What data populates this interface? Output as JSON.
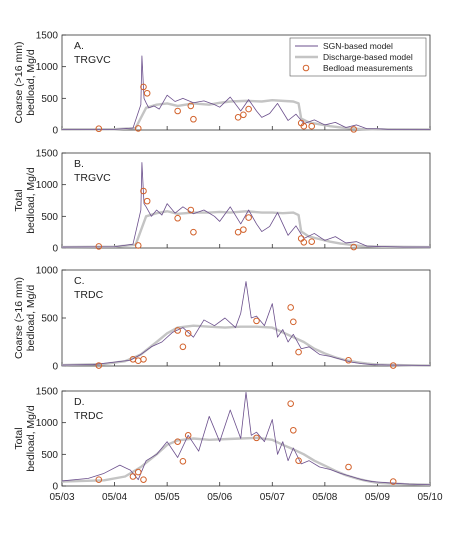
{
  "colors": {
    "sgn": "#6b4f8c",
    "discharge": "#c4c4c4",
    "measurement": "#d2622c",
    "axis": "#333333"
  },
  "chart_data": [
    {
      "type": "line",
      "panel_label": "A.",
      "station": "TRGVC",
      "ylabel": [
        "Coarse (>16 mm)",
        "bedload, Mg/d"
      ],
      "ylim": [
        0,
        1500
      ],
      "yticks": [
        0,
        500,
        1000,
        1500
      ],
      "xlim": [
        0,
        7
      ],
      "legend": {
        "placement": "top-right",
        "entries": [
          "SGN-based model",
          "Discharge-based model",
          "Bedload measurements"
        ]
      },
      "series": [
        {
          "name": "SGN-based model",
          "style": "line",
          "x": [
            0.0,
            1.0,
            1.35,
            1.5,
            1.52,
            1.56,
            1.6,
            1.65,
            1.75,
            1.85,
            2.0,
            2.15,
            2.3,
            2.5,
            2.7,
            2.9,
            3.0,
            3.2,
            3.4,
            3.55,
            3.7,
            3.8,
            3.95,
            4.1,
            4.3,
            4.45,
            4.6,
            4.8,
            5.0,
            5.2,
            5.4,
            5.6,
            5.8,
            6.0,
            6.2,
            6.5,
            6.8,
            7.0
          ],
          "y": [
            10,
            10,
            30,
            400,
            1170,
            500,
            430,
            350,
            380,
            330,
            550,
            450,
            500,
            430,
            460,
            400,
            360,
            520,
            300,
            480,
            300,
            200,
            260,
            420,
            150,
            250,
            100,
            160,
            80,
            120,
            40,
            80,
            20,
            20,
            10,
            10,
            10,
            10
          ]
        },
        {
          "name": "Discharge-based model",
          "style": "line",
          "x": [
            0.0,
            1.0,
            1.4,
            1.6,
            1.8,
            2.0,
            2.2,
            2.5,
            2.8,
            3.0,
            3.2,
            3.5,
            3.8,
            4.0,
            4.2,
            4.4,
            4.5,
            4.55,
            4.7,
            4.9,
            5.1,
            5.3,
            5.5,
            5.7,
            6.0,
            7.0
          ],
          "y": [
            10,
            12,
            30,
            350,
            400,
            420,
            380,
            420,
            400,
            430,
            450,
            460,
            450,
            470,
            460,
            450,
            420,
            180,
            120,
            90,
            60,
            40,
            25,
            15,
            10,
            8
          ]
        },
        {
          "name": "Bedload measurements",
          "style": "scatter",
          "x": [
            0.7,
            1.45,
            1.55,
            1.62,
            2.2,
            2.45,
            2.5,
            3.35,
            3.45,
            3.55,
            4.55,
            4.6,
            4.75,
            5.55
          ],
          "y": [
            20,
            25,
            680,
            580,
            300,
            380,
            170,
            200,
            240,
            330,
            110,
            60,
            60,
            10
          ]
        }
      ]
    },
    {
      "type": "line",
      "panel_label": "B.",
      "station": "TRGVC",
      "ylabel": [
        "Total",
        "bedload, Mg/d"
      ],
      "ylim": [
        0,
        1500
      ],
      "yticks": [
        0,
        500,
        1000,
        1500
      ],
      "xlim": [
        0,
        7
      ],
      "series": [
        {
          "name": "SGN-based model",
          "style": "line",
          "x": [
            0.0,
            1.0,
            1.35,
            1.5,
            1.52,
            1.56,
            1.6,
            1.7,
            1.8,
            1.9,
            2.0,
            2.15,
            2.3,
            2.5,
            2.7,
            2.9,
            3.0,
            3.2,
            3.4,
            3.55,
            3.7,
            3.8,
            3.95,
            4.1,
            4.3,
            4.45,
            4.6,
            4.8,
            5.0,
            5.2,
            5.4,
            5.6,
            5.8,
            6.0,
            6.5,
            7.0
          ],
          "y": [
            15,
            20,
            60,
            600,
            1350,
            700,
            650,
            500,
            600,
            520,
            700,
            550,
            650,
            540,
            600,
            500,
            420,
            650,
            380,
            600,
            380,
            260,
            340,
            560,
            200,
            350,
            150,
            230,
            120,
            180,
            80,
            100,
            30,
            25,
            15,
            15
          ]
        },
        {
          "name": "Discharge-based model",
          "style": "line",
          "x": [
            0.0,
            1.0,
            1.4,
            1.6,
            1.8,
            2.0,
            2.2,
            2.5,
            2.8,
            3.0,
            3.2,
            3.5,
            3.8,
            4.0,
            4.2,
            4.4,
            4.5,
            4.55,
            4.7,
            4.9,
            5.1,
            5.3,
            5.5,
            5.7,
            6.0,
            7.0
          ],
          "y": [
            15,
            20,
            50,
            500,
            550,
            580,
            540,
            560,
            560,
            570,
            560,
            580,
            560,
            560,
            550,
            560,
            520,
            260,
            180,
            140,
            100,
            70,
            50,
            30,
            20,
            15
          ]
        },
        {
          "name": "Bedload measurements",
          "style": "scatter",
          "x": [
            0.7,
            1.45,
            1.55,
            1.62,
            2.2,
            2.45,
            2.5,
            3.35,
            3.45,
            3.55,
            4.55,
            4.6,
            4.75,
            5.55
          ],
          "y": [
            25,
            40,
            900,
            740,
            470,
            600,
            250,
            250,
            290,
            480,
            150,
            90,
            100,
            15
          ]
        }
      ]
    },
    {
      "type": "line",
      "panel_label": "C.",
      "station": "TRDC",
      "ylabel": [
        "Coarse (>16 mm)",
        "bedload, Mg/d"
      ],
      "ylim": [
        0,
        1000
      ],
      "yticks": [
        0,
        500,
        1000
      ],
      "xlim": [
        0,
        7
      ],
      "series": [
        {
          "name": "SGN-based model",
          "style": "line",
          "x": [
            0.0,
            0.6,
            1.0,
            1.3,
            1.5,
            1.7,
            1.9,
            2.1,
            2.3,
            2.5,
            2.7,
            2.9,
            3.1,
            3.3,
            3.4,
            3.5,
            3.6,
            3.7,
            3.85,
            4.0,
            4.1,
            4.2,
            4.3,
            4.4,
            4.55,
            4.7,
            4.9,
            5.1,
            5.3,
            5.5,
            5.7,
            5.9,
            6.2,
            6.6,
            7.0
          ],
          "y": [
            10,
            15,
            40,
            60,
            120,
            200,
            250,
            350,
            400,
            300,
            480,
            420,
            500,
            400,
            550,
            880,
            500,
            520,
            420,
            650,
            300,
            380,
            250,
            330,
            180,
            200,
            120,
            100,
            70,
            40,
            25,
            15,
            10,
            8,
            5
          ]
        },
        {
          "name": "Discharge-based model",
          "style": "line",
          "x": [
            0.0,
            0.8,
            1.2,
            1.5,
            1.8,
            2.0,
            2.2,
            2.5,
            2.8,
            3.1,
            3.4,
            3.7,
            4.0,
            4.2,
            4.4,
            4.6,
            4.8,
            5.0,
            5.2,
            5.4,
            5.6,
            5.8,
            6.0,
            6.5,
            7.0
          ],
          "y": [
            10,
            20,
            50,
            120,
            250,
            340,
            400,
            420,
            410,
            400,
            410,
            410,
            400,
            350,
            300,
            250,
            180,
            130,
            90,
            60,
            40,
            25,
            15,
            8,
            5
          ]
        },
        {
          "name": "Bedload measurements",
          "style": "scatter",
          "x": [
            0.7,
            1.35,
            1.45,
            1.55,
            2.2,
            2.3,
            2.4,
            3.7,
            4.35,
            4.4,
            4.5,
            5.45,
            6.3
          ],
          "y": [
            5,
            70,
            55,
            70,
            370,
            200,
            340,
            470,
            610,
            460,
            145,
            60,
            5
          ]
        }
      ]
    },
    {
      "type": "line",
      "panel_label": "D.",
      "station": "TRDC",
      "ylabel": [
        "Total",
        "bedload, Mg/d"
      ],
      "ylim": [
        0,
        1500
      ],
      "yticks": [
        0,
        500,
        1000,
        1500
      ],
      "xlim": [
        0,
        7
      ],
      "xticks": [
        "05/03",
        "05/04",
        "05/05",
        "05/06",
        "05/07",
        "05/08",
        "05/09",
        "05/10"
      ],
      "series": [
        {
          "name": "SGN-based model",
          "style": "line",
          "x": [
            0.0,
            0.5,
            0.8,
            1.1,
            1.3,
            1.45,
            1.6,
            1.8,
            2.0,
            2.2,
            2.4,
            2.6,
            2.8,
            3.0,
            3.2,
            3.4,
            3.5,
            3.6,
            3.7,
            3.85,
            4.0,
            4.1,
            4.2,
            4.3,
            4.4,
            4.55,
            4.7,
            4.9,
            5.1,
            5.3,
            5.5,
            5.7,
            5.9,
            6.2,
            6.6,
            7.0
          ],
          "y": [
            80,
            120,
            200,
            330,
            250,
            100,
            400,
            500,
            700,
            450,
            800,
            550,
            1100,
            700,
            1200,
            750,
            1480,
            800,
            850,
            700,
            1050,
            500,
            700,
            400,
            600,
            350,
            400,
            300,
            260,
            200,
            150,
            100,
            70,
            50,
            30,
            20
          ]
        },
        {
          "name": "Discharge-based model",
          "style": "line",
          "x": [
            0.0,
            0.8,
            1.2,
            1.5,
            1.8,
            2.0,
            2.2,
            2.5,
            2.8,
            3.1,
            3.4,
            3.7,
            4.0,
            4.2,
            4.4,
            4.6,
            4.8,
            5.0,
            5.2,
            5.4,
            5.6,
            5.8,
            6.0,
            6.5,
            7.0
          ],
          "y": [
            70,
            90,
            150,
            300,
            500,
            650,
            720,
            750,
            730,
            740,
            750,
            760,
            730,
            650,
            580,
            500,
            400,
            320,
            240,
            170,
            120,
            80,
            50,
            30,
            20
          ]
        },
        {
          "name": "Bedload measurements",
          "style": "scatter",
          "x": [
            0.7,
            1.35,
            1.45,
            1.55,
            2.2,
            2.3,
            2.4,
            3.7,
            4.35,
            4.4,
            4.5,
            5.45,
            6.3
          ],
          "y": [
            100,
            150,
            220,
            100,
            700,
            390,
            800,
            760,
            1300,
            880,
            400,
            300,
            70
          ]
        }
      ]
    }
  ]
}
